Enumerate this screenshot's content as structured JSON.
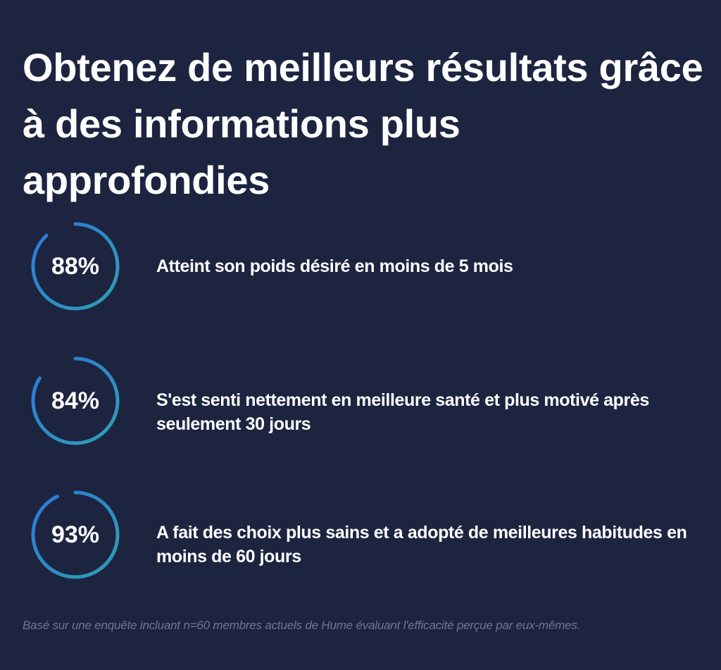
{
  "headline": "Obtenez de meilleurs résultats grâce à des informations plus approfondies",
  "colors": {
    "background": "#1c2440",
    "ring_start": "#2e9fb0",
    "ring_end": "#2f76d9",
    "text": "#ffffff",
    "footnote": "#6f7791"
  },
  "stats": [
    {
      "value_label": "88%",
      "percent": 88,
      "text": "Atteint son poids désiré en moins de 5 mois"
    },
    {
      "value_label": "84%",
      "percent": 84,
      "text": "S'est senti nettement en meilleure santé et plus motivé après seulement 30 jours"
    },
    {
      "value_label": "93%",
      "percent": 93,
      "text": "A fait des choix plus sains et a adopté de meilleures habitudes en moins de 60 jours"
    }
  ],
  "footnote": "Basé sur une enquête incluant n=60 membres actuels de Hume évaluant l'efficacité perçue par eux-mêmes."
}
